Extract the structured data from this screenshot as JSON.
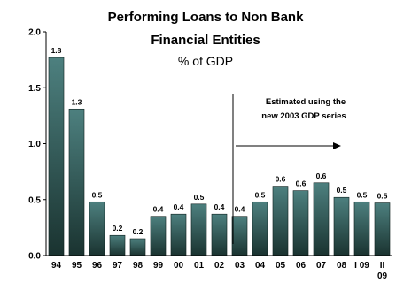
{
  "chart_data": {
    "type": "bar",
    "title_lines": [
      "Performing Loans to Non Bank",
      "Financial Entities"
    ],
    "subtitle": "% of GDP",
    "categories": [
      "94",
      "95",
      "96",
      "97",
      "98",
      "99",
      "00",
      "01",
      "02",
      "03",
      "04",
      "05",
      "06",
      "07",
      "08",
      "I 09",
      "II 09"
    ],
    "category_lines": [
      [
        "94"
      ],
      [
        "95"
      ],
      [
        "96"
      ],
      [
        "97"
      ],
      [
        "98"
      ],
      [
        "99"
      ],
      [
        "00"
      ],
      [
        "01"
      ],
      [
        "02"
      ],
      [
        "03"
      ],
      [
        "04"
      ],
      [
        "05"
      ],
      [
        "06"
      ],
      [
        "07"
      ],
      [
        "08"
      ],
      [
        "I 09"
      ],
      [
        "II",
        "09"
      ]
    ],
    "values": [
      1.77,
      1.31,
      0.48,
      0.18,
      0.15,
      0.35,
      0.37,
      0.46,
      0.37,
      0.35,
      0.48,
      0.62,
      0.58,
      0.65,
      0.52,
      0.48,
      0.47
    ],
    "data_labels": [
      "1.8",
      "1.3",
      "0.5",
      "0.2",
      "0.2",
      "0.4",
      "0.4",
      "0.5",
      "0.4",
      "0.4",
      "0.5",
      "0.6",
      "0.6",
      "0.6",
      "0.5",
      "0.5",
      "0.5"
    ],
    "ylim": [
      0,
      2.0
    ],
    "yticks": [
      "0.0",
      "0.5",
      "1.0",
      "1.5",
      "2.0"
    ],
    "annotation_lines": [
      "Estimated using the",
      "new 2003 GDP series"
    ],
    "grid": false,
    "colors": {
      "bar_top": "#4d807f",
      "bar_bottom": "#1a3330",
      "bar_stroke": "#0e1f1d"
    }
  }
}
